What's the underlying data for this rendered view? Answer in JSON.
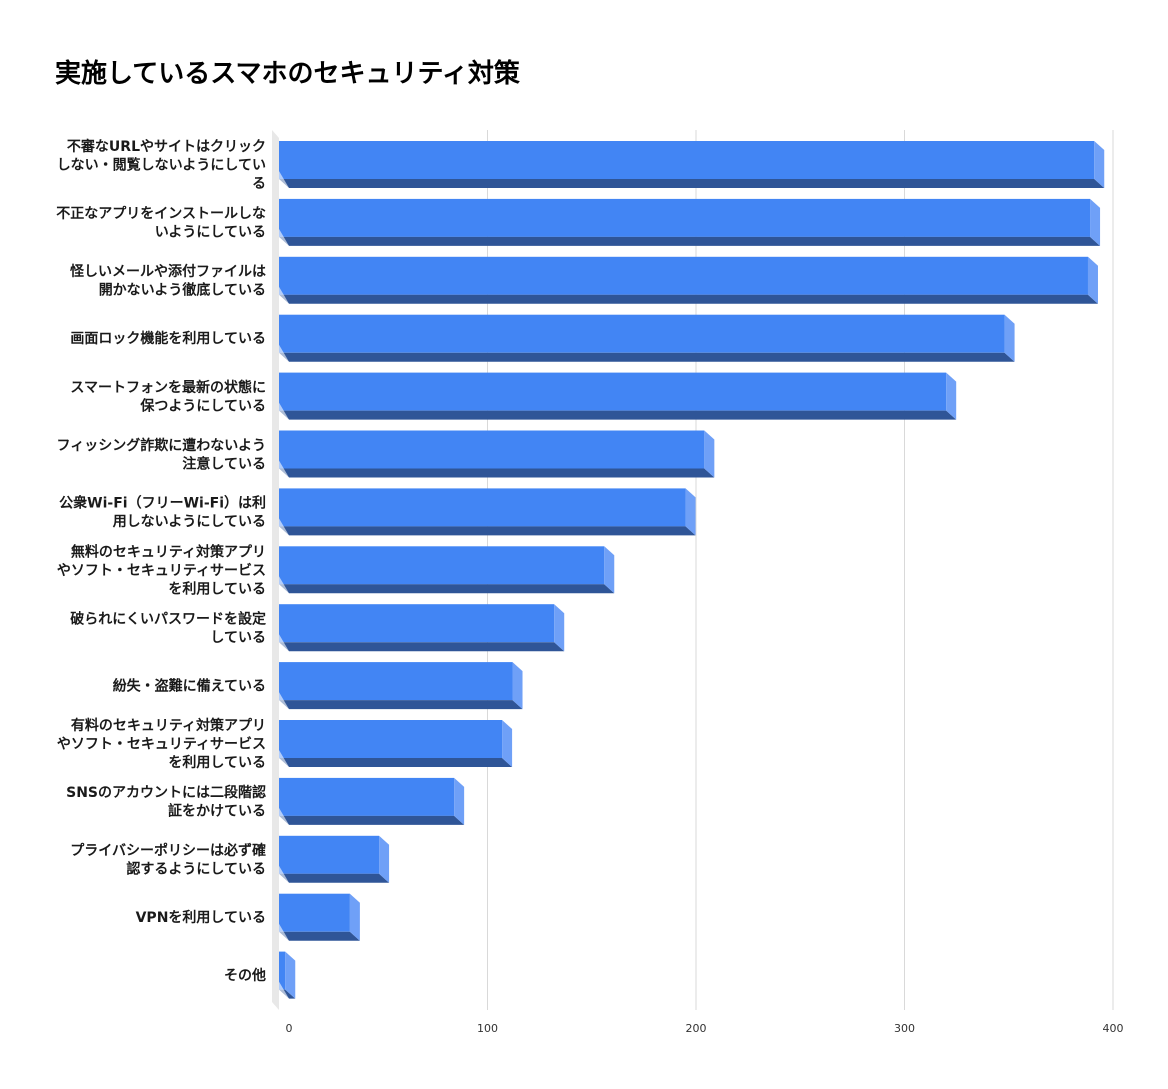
{
  "chart_data": {
    "type": "bar",
    "orientation": "horizontal",
    "title": "実施しているスマホのセキュリティ対策",
    "categories": [
      "不審なURLやサイトはクリックしない・閲覧しないようにしている",
      "不正なアプリをインストールしないようにしている",
      "怪しいメールや添付ファイルは開かないよう徹底している",
      "画面ロック機能を利用している",
      "スマートフォンを最新の状態に保つようにしている",
      "フィッシング詐欺に遭わないよう注意している",
      "公衆Wi-Fi（フリーWi-Fi）は利用しないようにしている",
      "無料のセキュリティ対策アプリやソフト・セキュリティサービスを利用している",
      "破られにくいパスワードを設定している",
      "紛失・盗難に備えている",
      "有料のセキュリティ対策アプリやソフト・セキュリティサービスを利用している",
      "SNSのアカウントには二段階認証をかけている",
      "プライバシーポリシーは必ず確認するようにしている",
      "VPNを利用している",
      "その他"
    ],
    "label_lines": [
      [
        "不審なURLやサイトはクリック",
        "しない・閲覧しないようにしてい",
        "る"
      ],
      [
        "不正なアプリをインストールしな",
        "いようにしている"
      ],
      [
        "怪しいメールや添付ファイルは",
        "開かないよう徹底している"
      ],
      [
        "画面ロック機能を利用している"
      ],
      [
        "スマートフォンを最新の状態に",
        "保つようにしている"
      ],
      [
        "フィッシング詐欺に遭わないよう",
        "注意している"
      ],
      [
        "公衆Wi-Fi（フリーWi-Fi）は利",
        "用しないようにしている"
      ],
      [
        "無料のセキュリティ対策アプリ",
        "やソフト・セキュリティサービス",
        "を利用している"
      ],
      [
        "破られにくいパスワードを設定",
        "している"
      ],
      [
        "紛失・盗難に備えている"
      ],
      [
        "有料のセキュリティ対策アプリ",
        "やソフト・セキュリティサービス",
        "を利用している"
      ],
      [
        "SNSのアカウントには二段階認",
        "証をかけている"
      ],
      [
        "プライバシーポリシーは必ず確",
        "認するようにしている"
      ],
      [
        "VPNを利用している"
      ],
      [
        "その他"
      ]
    ],
    "values": [
      391,
      389,
      388,
      348,
      320,
      204,
      195,
      156,
      132,
      112,
      107,
      84,
      48,
      34,
      3
    ],
    "xlim": [
      0,
      400
    ],
    "xticks": [
      0,
      100,
      200,
      300,
      400
    ],
    "xlabel": "",
    "ylabel": "",
    "grid": true,
    "legend": "none",
    "colors": {
      "bar_front": "#4285f4",
      "bar_bottom": "#2f5597",
      "bar_side": "#6fa0f7",
      "wall": "#e8e8e8",
      "grid": "#d9d9d9"
    }
  }
}
